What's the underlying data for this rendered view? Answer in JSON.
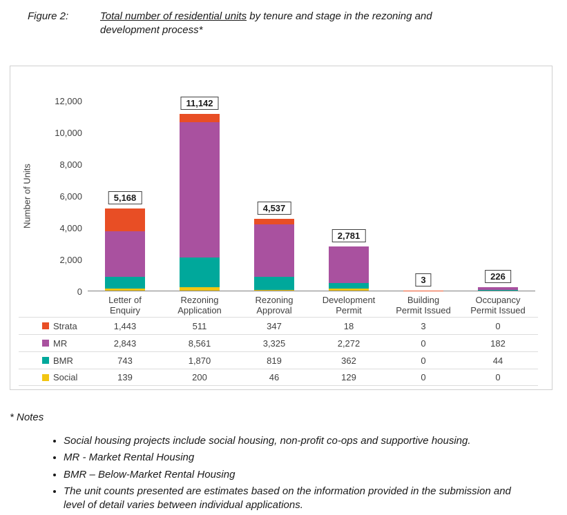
{
  "figure_caption": {
    "label": "Figure 2:",
    "title_underline": "Total number of residential units",
    "title_rest": " by tenure and stage in the rezoning and",
    "title_line2": "development process*"
  },
  "chart_data": {
    "type": "bar",
    "stacked": true,
    "title": "",
    "xlabel": "",
    "ylabel": "Number of Units",
    "ylim": [
      0,
      12000
    ],
    "y_tick_step": 2000,
    "y_tick_labels": [
      "0",
      "2,000",
      "4,000",
      "6,000",
      "8,000",
      "10,000",
      "12,000"
    ],
    "grid": false,
    "legend_position": "table-left",
    "categories": [
      "Letter of\nEnquiry",
      "Rezoning\nApplication",
      "Rezoning\nApproval",
      "Development\nPermit",
      "Building\nPermit Issued",
      "Occupancy\nPermit Issued"
    ],
    "series": [
      {
        "name": "Strata",
        "color": "#e84e25",
        "values": [
          1443,
          511,
          347,
          18,
          3,
          0
        ],
        "labels": [
          "1,443",
          "511",
          "347",
          "18",
          "3",
          "0"
        ]
      },
      {
        "name": "MR",
        "color": "#a9519f",
        "values": [
          2843,
          8561,
          3325,
          2272,
          0,
          182
        ],
        "labels": [
          "2,843",
          "8,561",
          "3,325",
          "2,272",
          "0",
          "182"
        ]
      },
      {
        "name": "BMR",
        "color": "#00a89b",
        "values": [
          743,
          1870,
          819,
          362,
          0,
          44
        ],
        "labels": [
          "743",
          "1,870",
          "819",
          "362",
          "0",
          "44"
        ]
      },
      {
        "name": "Social",
        "color": "#f2c512",
        "values": [
          139,
          200,
          46,
          129,
          0,
          0
        ],
        "labels": [
          "139",
          "200",
          "46",
          "129",
          "0",
          "0"
        ]
      }
    ],
    "stack_order_bottom_to_top": [
      "Social",
      "BMR",
      "MR",
      "Strata"
    ],
    "totals": {
      "values": [
        5168,
        11142,
        4537,
        2781,
        3,
        226
      ],
      "labels": [
        "5,168",
        "11,142",
        "4,537",
        "2,781",
        "3",
        "226"
      ]
    }
  },
  "notes": {
    "heading": "* Notes",
    "bullets": [
      "Social housing projects include social housing, non-profit co-ops and supportive housing.",
      "MR - Market Rental Housing",
      "BMR – Below-Market Rental Housing",
      "The unit counts presented are estimates based on the information provided in the submission and level of detail varies between individual applications."
    ]
  }
}
